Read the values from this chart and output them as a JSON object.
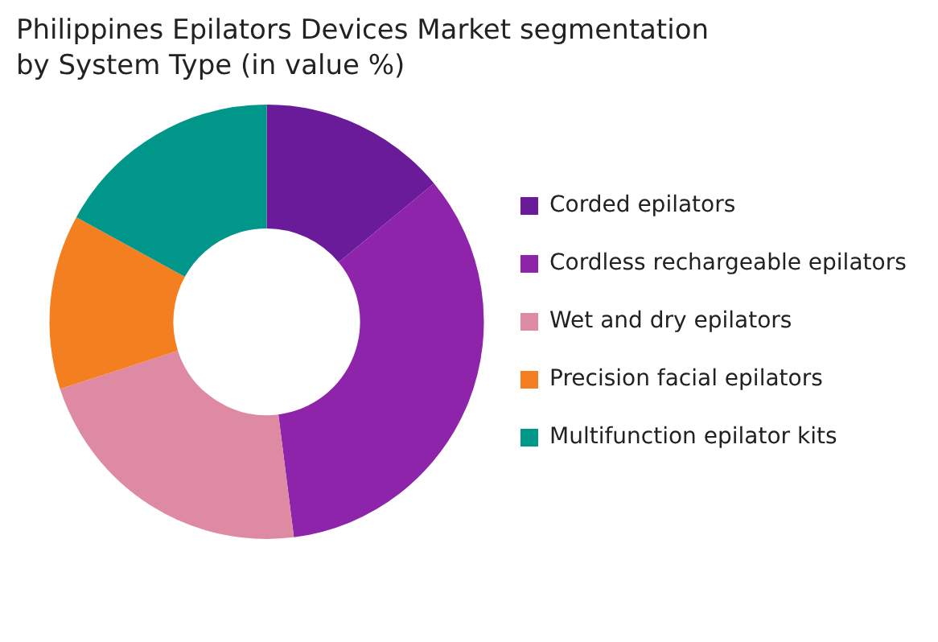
{
  "chart_data": {
    "type": "donut",
    "title": "Philippines Epilators Devices Market segmentation by System Type (in value %)",
    "categories": [
      "Corded epilators",
      "Cordless rechargeable epilators",
      "Wet and dry epilators",
      "Precision facial epilators",
      "Multifunction epilator kits"
    ],
    "values": [
      14,
      34,
      22,
      13,
      17
    ],
    "colors": [
      "#6a1b9a",
      "#8e24aa",
      "#de8aa2",
      "#f47f20",
      "#00968a"
    ],
    "legend": "right"
  }
}
